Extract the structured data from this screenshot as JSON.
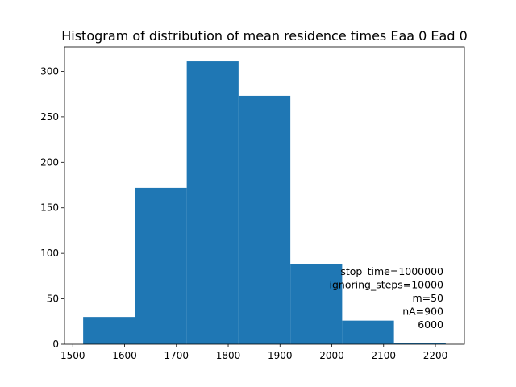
{
  "chart_data": {
    "type": "bar",
    "title": "Histogram of distribution of mean residence times Eaa 0 Ead 0",
    "xlabel": "",
    "ylabel": "",
    "bins": [
      {
        "x0": 1520,
        "x1": 1620,
        "count": 30
      },
      {
        "x0": 1620,
        "x1": 1720,
        "count": 172
      },
      {
        "x0": 1720,
        "x1": 1820,
        "count": 311
      },
      {
        "x0": 1820,
        "x1": 1920,
        "count": 273
      },
      {
        "x0": 1920,
        "x1": 2020,
        "count": 88
      },
      {
        "x0": 2020,
        "x1": 2120,
        "count": 26
      },
      {
        "x0": 2120,
        "x1": 2220,
        "count": 1
      }
    ],
    "xlim": [
      1484,
      2256
    ],
    "ylim": [
      0,
      327
    ],
    "xticks": [
      1500,
      1600,
      1700,
      1800,
      1900,
      2000,
      2100,
      2200
    ],
    "yticks": [
      0,
      50,
      100,
      150,
      200,
      250,
      300
    ],
    "bar_color": "#1f77b4",
    "grid": false,
    "annotation": [
      "stop_time=1000000",
      "ignoring_steps=10000",
      "m=50",
      "nA=900",
      "6000"
    ]
  }
}
